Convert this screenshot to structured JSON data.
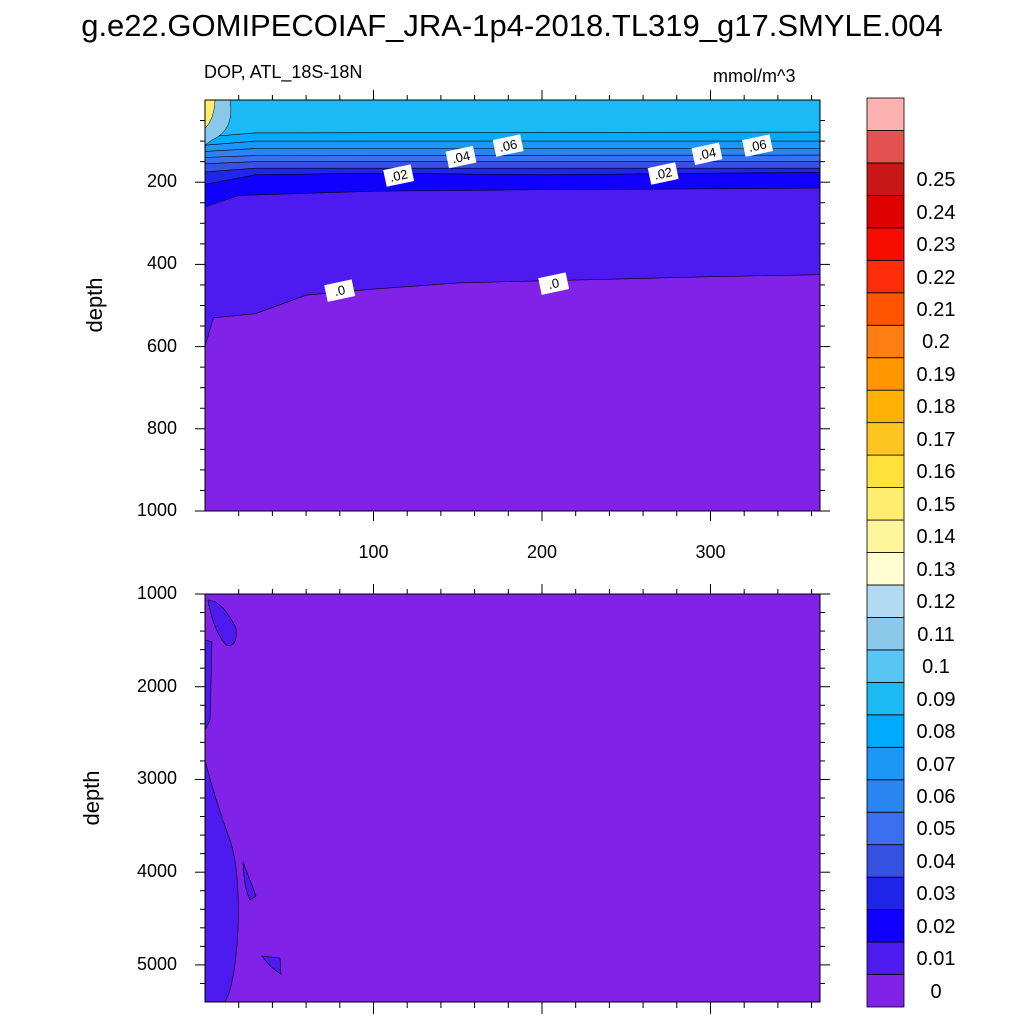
{
  "title": "g.e22.GOMIPECOIAF_JRA-1p4-2018.TL319_g17.SMYLE.004",
  "panel_label": "DOP, ATL_18S-18N",
  "units": "mmol/m^3",
  "colors": {
    "levels": [
      "#8022e8",
      "#4d1aef",
      "#1000ff",
      "#1f26ea",
      "#3553e0",
      "#3b6ef0",
      "#2a85f0",
      "#1b98f5",
      "#00abff",
      "#1bbaf5",
      "#58c6f4",
      "#8cc8ea",
      "#b2dbf2",
      "#fffed2",
      "#fff59b",
      "#ffed6f",
      "#ffe13c",
      "#fec41f",
      "#ffb203",
      "#ff9600",
      "#ff7e11",
      "#ff5400",
      "#ff2c0a",
      "#f80c00",
      "#df0000",
      "#c91717",
      "#e45151",
      "#fdb2b2"
    ]
  },
  "chart_data": [
    {
      "type": "contour",
      "panel": "upper",
      "ylabel": "depth",
      "xlim": [
        0,
        365
      ],
      "ylim": [
        1000,
        0
      ],
      "x_ticks": [
        100,
        200,
        300
      ],
      "y_ticks": [
        200,
        400,
        600,
        800,
        1000
      ],
      "contours": [
        {
          "value": 0.0,
          "depth_profile": [
            [
              0,
              600
            ],
            [
              5,
              530
            ],
            [
              30,
              520
            ],
            [
              60,
              475
            ],
            [
              100,
              460
            ],
            [
              150,
              445
            ],
            [
              200,
              440
            ],
            [
              250,
              435
            ],
            [
              300,
              430
            ],
            [
              365,
              425
            ]
          ]
        },
        {
          "value": 0.01,
          "depth_profile": [
            [
              0,
              260
            ],
            [
              20,
              232
            ],
            [
              100,
              222
            ],
            [
              200,
              218
            ],
            [
              300,
              216
            ],
            [
              365,
              214
            ]
          ]
        },
        {
          "value": 0.02,
          "depth_profile": [
            [
              0,
              205
            ],
            [
              30,
              182
            ],
            [
              100,
              178
            ],
            [
              200,
              182
            ],
            [
              300,
              178
            ],
            [
              365,
              176
            ]
          ]
        },
        {
          "value": 0.03,
          "depth_profile": [
            [
              0,
              175
            ],
            [
              30,
              166
            ],
            [
              365,
              166
            ]
          ]
        },
        {
          "value": 0.04,
          "depth_profile": [
            [
              0,
              155
            ],
            [
              30,
              150
            ],
            [
              365,
              150
            ]
          ]
        },
        {
          "value": 0.05,
          "depth_profile": [
            [
              0,
              140
            ],
            [
              30,
              135
            ],
            [
              365,
              134
            ]
          ]
        },
        {
          "value": 0.06,
          "depth_profile": [
            [
              0,
              125
            ],
            [
              30,
              118
            ],
            [
              365,
              118
            ]
          ]
        },
        {
          "value": 0.07,
          "depth_profile": [
            [
              0,
              110
            ],
            [
              30,
              100
            ],
            [
              365,
              100
            ]
          ]
        },
        {
          "value": 0.08,
          "depth_profile": [
            [
              0,
              90
            ],
            [
              30,
              80
            ],
            [
              365,
              78
            ]
          ]
        }
      ],
      "contour_labels": [
        {
          "text": ".0",
          "x": 80,
          "depth": 465
        },
        {
          "text": ".0",
          "x": 207,
          "depth": 448
        },
        {
          "text": ".02",
          "x": 115,
          "depth": 185
        },
        {
          "text": ".02",
          "x": 272,
          "depth": 180
        },
        {
          "text": ".04",
          "x": 152,
          "depth": 140
        },
        {
          "text": ".04",
          "x": 298,
          "depth": 132
        },
        {
          "text": ".06",
          "x": 180,
          "depth": 112
        },
        {
          "text": ".06",
          "x": 328,
          "depth": 112
        }
      ]
    },
    {
      "type": "contour",
      "panel": "lower",
      "ylabel": "depth",
      "xlim": [
        0,
        365
      ],
      "ylim": [
        5400,
        1000
      ],
      "y_ticks": [
        1000,
        2000,
        3000,
        4000,
        5000
      ],
      "note_value": 0.0
    }
  ],
  "colorbar": {
    "labels": [
      "0.25",
      "0.24",
      "0.23",
      "0.22",
      "0.21",
      "0.2",
      "0.19",
      "0.18",
      "0.17",
      "0.16",
      "0.15",
      "0.14",
      "0.13",
      "0.12",
      "0.11",
      "0.1",
      "0.09",
      "0.08",
      "0.07",
      "0.06",
      "0.05",
      "0.04",
      "0.03",
      "0.02",
      "0.01",
      "0"
    ]
  }
}
